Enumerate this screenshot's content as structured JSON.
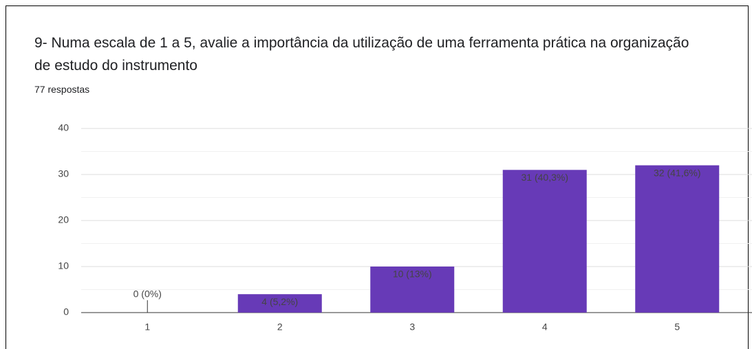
{
  "chart_data": {
    "type": "bar",
    "title": "9- Numa escala de 1 a 5, avalie a importância da utilização de uma ferramenta prática na organização de estudo do instrumento",
    "subtitle": "77 respostas",
    "categories": [
      "1",
      "2",
      "3",
      "4",
      "5"
    ],
    "values": [
      0,
      4,
      10,
      31,
      32
    ],
    "value_labels": [
      "0 (0%)",
      "4 (5,2%)",
      "10 (13%)",
      "31 (40,3%)",
      "32 (41,6%)"
    ],
    "color": "#673ab7",
    "ylim": [
      0,
      40
    ],
    "yticks": [
      0,
      10,
      20,
      30,
      40
    ],
    "grid": true,
    "minor_grid": true
  }
}
